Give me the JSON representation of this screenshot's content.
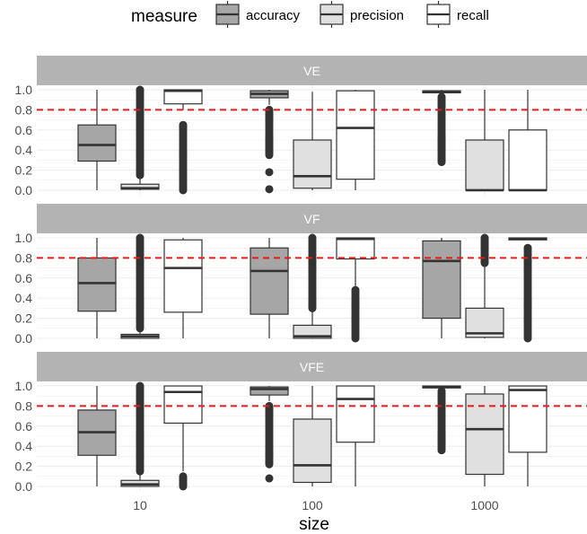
{
  "chart_data": {
    "type": "boxplot",
    "title": "",
    "xlabel": "size",
    "ylabel": "",
    "ylim": [
      0.0,
      1.0
    ],
    "yticks": [
      "0.0",
      "0.2",
      "0.4",
      "0.6",
      "0.8",
      "1.0"
    ],
    "categories": [
      "10",
      "100",
      "1000"
    ],
    "reference_line": {
      "y": 0.8,
      "color": "#e41a1c",
      "style": "dashed"
    },
    "legend": {
      "title": "measure",
      "position": "top",
      "entries": [
        {
          "name": "accuracy",
          "color": "#a6a6a6"
        },
        {
          "name": "precision",
          "color": "#e0e0e0"
        },
        {
          "name": "recall",
          "color": "#ffffff"
        }
      ]
    },
    "panels": [
      {
        "label": "VE",
        "boxes": [
          {
            "category": "10",
            "measure": "accuracy",
            "min": 0.0,
            "q1": 0.29,
            "median": 0.45,
            "q3": 0.65,
            "max": 1.0,
            "outliers": []
          },
          {
            "category": "10",
            "measure": "precision",
            "min": 0.0,
            "q1": 0.01,
            "median": 0.02,
            "q3": 0.06,
            "max": 0.12,
            "outliers": [
              0.15,
              0.2,
              0.3,
              0.4,
              0.5,
              0.6,
              0.7,
              0.8,
              0.9,
              1.0
            ]
          },
          {
            "category": "10",
            "measure": "recall",
            "min": 0.8,
            "q1": 0.86,
            "median": 0.99,
            "q3": 1.0,
            "max": 1.0,
            "outliers": [
              0.0,
              0.1,
              0.2,
              0.3,
              0.4,
              0.5,
              0.6,
              0.65
            ]
          },
          {
            "category": "100",
            "measure": "accuracy",
            "min": 0.85,
            "q1": 0.92,
            "median": 0.96,
            "q3": 0.99,
            "max": 1.0,
            "outliers": [
              0.01,
              0.18,
              0.35,
              0.45,
              0.55,
              0.65,
              0.72,
              0.8
            ]
          },
          {
            "category": "100",
            "measure": "precision",
            "min": 0.0,
            "q1": 0.02,
            "median": 0.14,
            "q3": 0.5,
            "max": 0.98,
            "outliers": []
          },
          {
            "category": "100",
            "measure": "recall",
            "min": 0.0,
            "q1": 0.11,
            "median": 0.62,
            "q3": 0.99,
            "max": 1.0,
            "outliers": []
          },
          {
            "category": "1000",
            "measure": "accuracy",
            "min": 0.95,
            "q1": 0.97,
            "median": 0.98,
            "q3": 0.99,
            "max": 1.0,
            "outliers": [
              0.28,
              0.35,
              0.45,
              0.55,
              0.65,
              0.75,
              0.85,
              0.93
            ]
          },
          {
            "category": "1000",
            "measure": "precision",
            "min": 0.0,
            "q1": 0.0,
            "median": 0.0,
            "q3": 0.5,
            "max": 1.0,
            "outliers": []
          },
          {
            "category": "1000",
            "measure": "recall",
            "min": 0.0,
            "q1": 0.0,
            "median": 0.0,
            "q3": 0.6,
            "max": 1.0,
            "outliers": []
          }
        ]
      },
      {
        "label": "VF",
        "boxes": [
          {
            "category": "10",
            "measure": "accuracy",
            "min": 0.0,
            "q1": 0.27,
            "median": 0.55,
            "q3": 0.8,
            "max": 1.0,
            "outliers": []
          },
          {
            "category": "10",
            "measure": "precision",
            "min": 0.0,
            "q1": 0.0,
            "median": 0.02,
            "q3": 0.04,
            "max": 0.08,
            "outliers": [
              0.1,
              0.2,
              0.3,
              0.4,
              0.5,
              0.6,
              0.7,
              0.8,
              0.9,
              1.0
            ]
          },
          {
            "category": "10",
            "measure": "recall",
            "min": 0.0,
            "q1": 0.26,
            "median": 0.7,
            "q3": 0.98,
            "max": 1.0,
            "outliers": []
          },
          {
            "category": "100",
            "measure": "accuracy",
            "min": 0.0,
            "q1": 0.24,
            "median": 0.67,
            "q3": 0.9,
            "max": 1.0,
            "outliers": []
          },
          {
            "category": "100",
            "measure": "precision",
            "min": 0.0,
            "q1": 0.0,
            "median": 0.02,
            "q3": 0.13,
            "max": 0.28,
            "outliers": [
              0.3,
              0.4,
              0.5,
              0.6,
              0.7,
              0.8,
              0.9,
              1.0
            ]
          },
          {
            "category": "100",
            "measure": "recall",
            "min": 0.5,
            "q1": 0.79,
            "median": 0.99,
            "q3": 1.0,
            "max": 1.0,
            "outliers": [
              0.0,
              0.1,
              0.2,
              0.3,
              0.4,
              0.48
            ]
          },
          {
            "category": "1000",
            "measure": "accuracy",
            "min": 0.0,
            "q1": 0.2,
            "median": 0.77,
            "q3": 0.97,
            "max": 1.0,
            "outliers": []
          },
          {
            "category": "1000",
            "measure": "precision",
            "min": 0.0,
            "q1": 0.01,
            "median": 0.05,
            "q3": 0.3,
            "max": 0.72,
            "outliers": [
              0.75,
              0.8,
              0.85,
              0.9,
              0.95,
              1.0
            ]
          },
          {
            "category": "1000",
            "measure": "recall",
            "min": 0.98,
            "q1": 0.98,
            "median": 0.99,
            "q3": 1.0,
            "max": 1.0,
            "outliers": [
              0.0,
              0.1,
              0.2,
              0.3,
              0.4,
              0.5,
              0.6,
              0.7,
              0.8,
              0.9
            ]
          }
        ]
      },
      {
        "label": "VFE",
        "boxes": [
          {
            "category": "10",
            "measure": "accuracy",
            "min": 0.0,
            "q1": 0.31,
            "median": 0.54,
            "q3": 0.76,
            "max": 1.0,
            "outliers": []
          },
          {
            "category": "10",
            "measure": "precision",
            "min": 0.0,
            "q1": 0.0,
            "median": 0.02,
            "q3": 0.06,
            "max": 0.12,
            "outliers": [
              0.15,
              0.25,
              0.35,
              0.45,
              0.55,
              0.65,
              0.75,
              0.85,
              0.95,
              1.0
            ]
          },
          {
            "category": "10",
            "measure": "recall",
            "min": 0.15,
            "q1": 0.63,
            "median": 0.94,
            "q3": 1.0,
            "max": 1.0,
            "outliers": [
              0.0,
              0.03,
              0.06,
              0.1
            ]
          },
          {
            "category": "100",
            "measure": "accuracy",
            "min": 0.85,
            "q1": 0.91,
            "median": 0.97,
            "q3": 0.99,
            "max": 1.0,
            "outliers": [
              0.08,
              0.22,
              0.3,
              0.4,
              0.5,
              0.6,
              0.7,
              0.8
            ]
          },
          {
            "category": "100",
            "measure": "precision",
            "min": 0.0,
            "q1": 0.04,
            "median": 0.21,
            "q3": 0.67,
            "max": 1.0,
            "outliers": []
          },
          {
            "category": "100",
            "measure": "recall",
            "min": 0.0,
            "q1": 0.44,
            "median": 0.87,
            "q3": 1.0,
            "max": 1.0,
            "outliers": []
          },
          {
            "category": "1000",
            "measure": "accuracy",
            "min": 0.97,
            "q1": 0.98,
            "median": 0.99,
            "q3": 1.0,
            "max": 1.0,
            "outliers": [
              0.36,
              0.45,
              0.55,
              0.65,
              0.75,
              0.85,
              0.95
            ]
          },
          {
            "category": "1000",
            "measure": "precision",
            "min": 0.0,
            "q1": 0.12,
            "median": 0.57,
            "q3": 0.92,
            "max": 1.0,
            "outliers": []
          },
          {
            "category": "1000",
            "measure": "recall",
            "min": 0.0,
            "q1": 0.34,
            "median": 0.96,
            "q3": 1.0,
            "max": 1.0,
            "outliers": []
          }
        ]
      }
    ]
  }
}
